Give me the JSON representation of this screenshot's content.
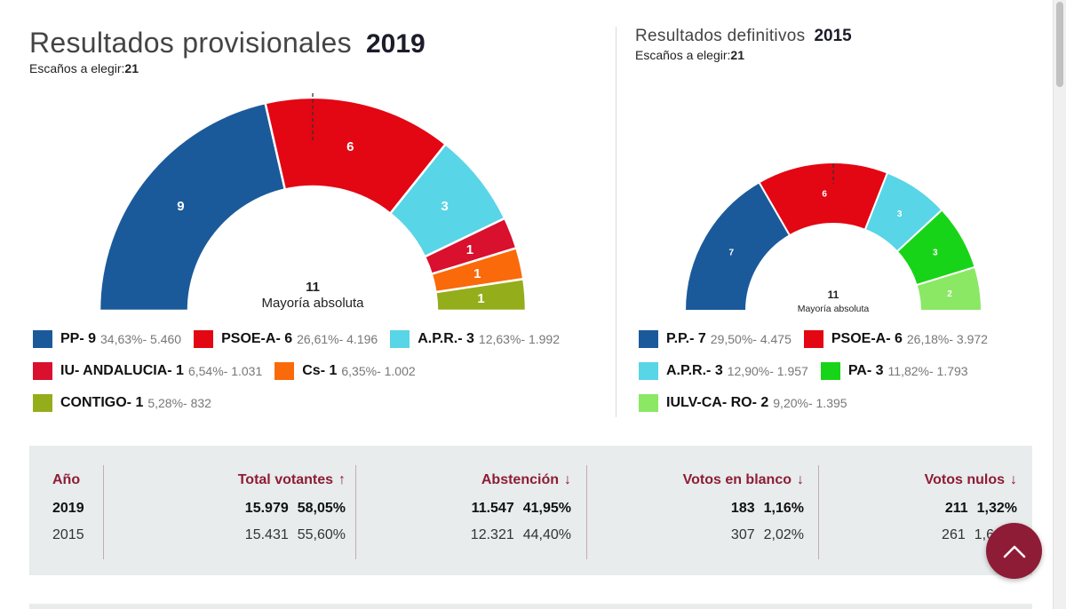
{
  "election_2019": {
    "title": "Resultados provisionales",
    "year": "2019",
    "seats_label": "Escaños a elegir:",
    "seats_value": "21",
    "majority_number": "11",
    "majority_label": "Mayoría absoluta",
    "legend": [
      {
        "party": "PP- 9",
        "stats": "34,63%- 5.460",
        "color": "#1b5a9a"
      },
      {
        "party": "PSOE-A- 6",
        "stats": "26,61%- 4.196",
        "color": "#e30613"
      },
      {
        "party": "A.P.R.- 3",
        "stats": "12,63%- 1.992",
        "color": "#58d5e6"
      },
      {
        "party": "IU- ANDALUCIA- 1",
        "stats": "6,54%- 1.031",
        "color": "#d9102e"
      },
      {
        "party": "Cs- 1",
        "stats": "6,35%- 1.002",
        "color": "#fa6a0a"
      },
      {
        "party": "CONTIGO- 1",
        "stats": "5,28%- 832",
        "color": "#94ad1a"
      }
    ]
  },
  "election_2015": {
    "title": "Resultados definitivos",
    "year": "2015",
    "seats_label": "Escaños a elegir:",
    "seats_value": "21",
    "majority_number": "11",
    "majority_label": "Mayoría absoluta",
    "legend": [
      {
        "party": "P.P.- 7",
        "stats": "29,50%- 4.475",
        "color": "#1b5a9a"
      },
      {
        "party": "PSOE-A- 6",
        "stats": "26,18%- 3.972",
        "color": "#e30613"
      },
      {
        "party": "A.P.R.- 3",
        "stats": "12,90%- 1.957",
        "color": "#58d5e6"
      },
      {
        "party": "PA- 3",
        "stats": "11,82%- 1.793",
        "color": "#18d418"
      },
      {
        "party": "IULV-CA- RO- 2",
        "stats": "9,20%- 1.395",
        "color": "#8ae865"
      }
    ]
  },
  "chart_data": [
    {
      "type": "pie",
      "title": "Resultados provisionales 2019",
      "categories": [
        "PP",
        "PSOE-A",
        "A.P.R.",
        "IU- ANDALUCIA",
        "Cs",
        "CONTIGO"
      ],
      "values": [
        9,
        6,
        3,
        1,
        1,
        1
      ],
      "colors": [
        "#1b5a9a",
        "#e30613",
        "#58d5e6",
        "#d9102e",
        "#fa6a0a",
        "#94ad1a"
      ],
      "total": 21,
      "majority": 11
    },
    {
      "type": "pie",
      "title": "Resultados definitivos 2015",
      "categories": [
        "P.P.",
        "PSOE-A",
        "A.P.R.",
        "PA",
        "IULV-CA- RO"
      ],
      "values": [
        7,
        6,
        3,
        3,
        2
      ],
      "colors": [
        "#1b5a9a",
        "#e30613",
        "#58d5e6",
        "#18d418",
        "#8ae865"
      ],
      "total": 21,
      "majority": 11
    }
  ],
  "table": {
    "headers": {
      "year": "Año",
      "voters": "Total votantes",
      "abstention": "Abstención",
      "blank": "Votos en blanco",
      "null": "Votos nulos"
    },
    "arrows": {
      "voters": "↑",
      "abstention": "↓",
      "blank": "↓",
      "null": "↓"
    },
    "rows": [
      {
        "year": "2019",
        "voters_n": "15.979",
        "voters_p": "58,05%",
        "abst_n": "11.547",
        "abst_p": "41,95%",
        "blank_n": "183",
        "blank_p": "1,16%",
        "null_n": "211",
        "null_p": "1,32%"
      },
      {
        "year": "2015",
        "voters_n": "15.431",
        "voters_p": "55,60%",
        "abst_n": "12.321",
        "abst_p": "44,40%",
        "blank_n": "307",
        "blank_p": "2,02%",
        "null_n": "261",
        "null_p": "1,6"
      }
    ]
  }
}
